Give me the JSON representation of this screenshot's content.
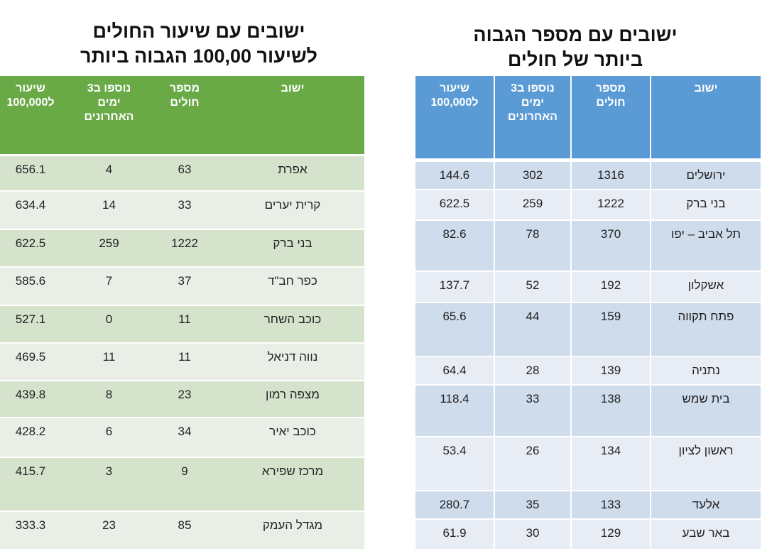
{
  "left_table": {
    "title_line1": "ישובים עם שיעור החולים",
    "title_line2": "לשיעור 100,00 הגבוה ביותר",
    "header_color": "#6aaa46",
    "row_colors": [
      "#d5e3cd",
      "#e9efe6"
    ],
    "headers": {
      "settlement": "ישוב",
      "patients_line1": "מספר",
      "patients_line2": "חולים",
      "added_line1": "נוספו ב3",
      "added_line2": "ימים",
      "added_line3": "האחרונים",
      "rate_line1": "שיעור",
      "rate_line2": "ל100,000"
    },
    "rows": [
      {
        "settlement": "אפרת",
        "patients": "63",
        "added_3_days": "4",
        "rate_per_100k": "656.1"
      },
      {
        "settlement": "קרית יערים",
        "patients": "33",
        "added_3_days": "14",
        "rate_per_100k": "634.4"
      },
      {
        "settlement": "בני ברק",
        "patients": "1222",
        "added_3_days": "259",
        "rate_per_100k": "622.5"
      },
      {
        "settlement": "כפר חב\"ד",
        "patients": "37",
        "added_3_days": "7",
        "rate_per_100k": "585.6"
      },
      {
        "settlement": "כוכב השחר",
        "patients": "11",
        "added_3_days": "0",
        "rate_per_100k": "527.1"
      },
      {
        "settlement": "נווה דניאל",
        "patients": "11",
        "added_3_days": "11",
        "rate_per_100k": "469.5"
      },
      {
        "settlement": "מצפה רמון",
        "patients": "23",
        "added_3_days": "8",
        "rate_per_100k": "439.8"
      },
      {
        "settlement": "כוכב יאיר",
        "patients": "34",
        "added_3_days": "6",
        "rate_per_100k": "428.2"
      },
      {
        "settlement": "מרכז שפירא",
        "patients": "9",
        "added_3_days": "3",
        "rate_per_100k": "415.7"
      },
      {
        "settlement": "מגדל העמק",
        "patients": "85",
        "added_3_days": "23",
        "rate_per_100k": "333.3"
      }
    ]
  },
  "right_table": {
    "title_line1": "ישובים עם מספר הגבוה",
    "title_line2": "ביותר של חולים",
    "header_color": "#5b9bd5",
    "row_colors": [
      "#cfdcec",
      "#e8edf5"
    ],
    "headers": {
      "settlement": "ישוב",
      "patients_line1": "מספר",
      "patients_line2": "חולים",
      "added_line1": "נוספו ב3",
      "added_line2": "ימים",
      "added_line3": "האחרונים",
      "rate_line1": "שיעור",
      "rate_line2": "ל100,000"
    },
    "rows": [
      {
        "settlement": "ירושלים",
        "patients": "1316",
        "added_3_days": "302",
        "rate_per_100k": "144.6"
      },
      {
        "settlement": "בני ברק",
        "patients": "1222",
        "added_3_days": "259",
        "rate_per_100k": "622.5"
      },
      {
        "settlement": "תל אביב – יפו",
        "patients": "370",
        "added_3_days": "78",
        "rate_per_100k": "82.6"
      },
      {
        "settlement": "אשקלון",
        "patients": "192",
        "added_3_days": "52",
        "rate_per_100k": "137.7"
      },
      {
        "settlement": "פתח תקווה",
        "patients": "159",
        "added_3_days": "44",
        "rate_per_100k": "65.6"
      },
      {
        "settlement": "נתניה",
        "patients": "139",
        "added_3_days": "28",
        "rate_per_100k": "64.4"
      },
      {
        "settlement": "בית שמש",
        "patients": "138",
        "added_3_days": "33",
        "rate_per_100k": "118.4"
      },
      {
        "settlement": "ראשון לציון",
        "patients": "134",
        "added_3_days": "26",
        "rate_per_100k": "53.4"
      },
      {
        "settlement": "אלעד",
        "patients": "133",
        "added_3_days": "35",
        "rate_per_100k": "280.7"
      },
      {
        "settlement": "באר שבע",
        "patients": "129",
        "added_3_days": "30",
        "rate_per_100k": "61.9"
      }
    ]
  }
}
